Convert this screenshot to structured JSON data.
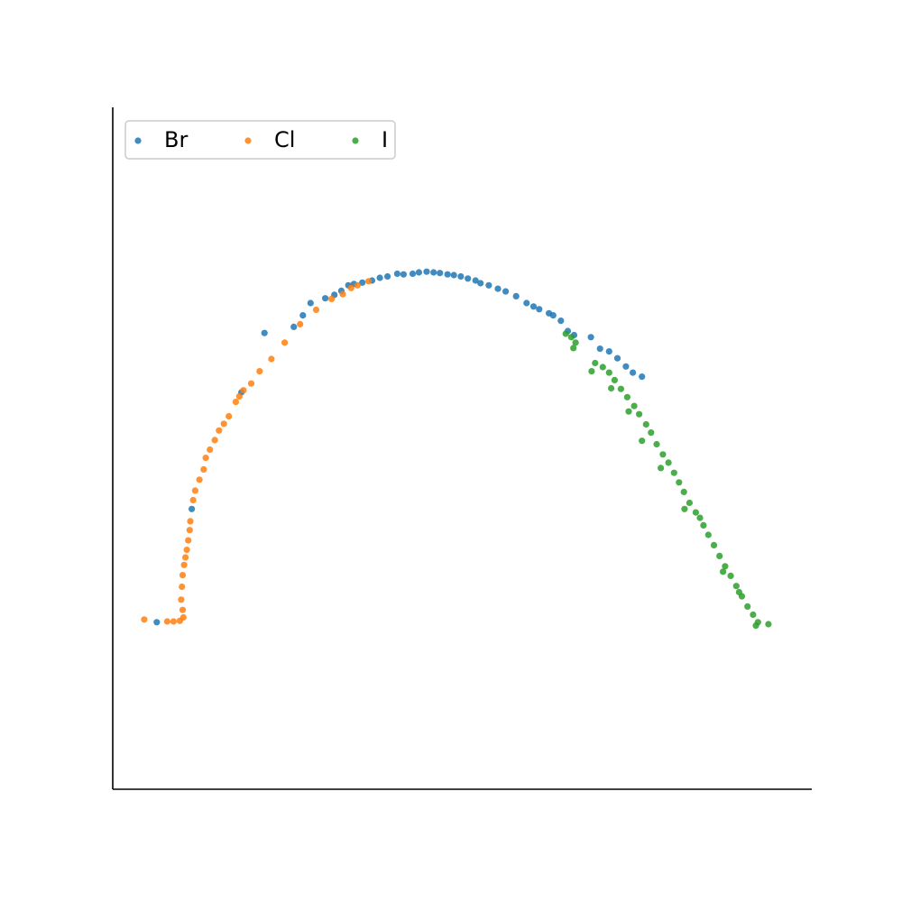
{
  "chart_data": {
    "type": "scatter",
    "title": "",
    "xlabel": "",
    "ylabel": "",
    "xlim": [
      0,
      100
    ],
    "ylim": [
      0,
      100
    ],
    "grid": false,
    "ticks_visible": false,
    "legend": {
      "placement": "top-left",
      "columns": 3
    },
    "series": [
      {
        "name": "Br",
        "color": "#1f77b4",
        "points": [
          [
            6.3,
            24.5
          ],
          [
            11.3,
            41.1
          ],
          [
            18.4,
            58.2
          ],
          [
            21.7,
            66.9
          ],
          [
            25.9,
            67.8
          ],
          [
            27.2,
            69.5
          ],
          [
            28.3,
            71.3
          ],
          [
            30.4,
            72.0
          ],
          [
            31.7,
            72.5
          ],
          [
            32.7,
            73.1
          ],
          [
            33.7,
            73.9
          ],
          [
            34.5,
            74.1
          ],
          [
            35.7,
            74.3
          ],
          [
            37.1,
            74.6
          ],
          [
            38.2,
            75.0
          ],
          [
            39.3,
            75.2
          ],
          [
            40.7,
            75.6
          ],
          [
            41.6,
            75.5
          ],
          [
            42.9,
            75.6
          ],
          [
            43.8,
            75.8
          ],
          [
            44.9,
            75.9
          ],
          [
            45.9,
            75.8
          ],
          [
            46.8,
            75.7
          ],
          [
            47.9,
            75.5
          ],
          [
            48.8,
            75.4
          ],
          [
            49.8,
            75.2
          ],
          [
            50.8,
            74.9
          ],
          [
            51.9,
            74.6
          ],
          [
            52.6,
            74.2
          ],
          [
            53.8,
            73.9
          ],
          [
            55.1,
            73.4
          ],
          [
            56.2,
            73.0
          ],
          [
            57.7,
            72.3
          ],
          [
            59.2,
            71.3
          ],
          [
            60.2,
            70.8
          ],
          [
            61.0,
            70.4
          ],
          [
            62.4,
            69.8
          ],
          [
            63.0,
            69.5
          ],
          [
            64.1,
            68.7
          ],
          [
            65.1,
            67.2
          ],
          [
            66.0,
            66.6
          ],
          [
            68.4,
            66.3
          ],
          [
            69.7,
            64.6
          ],
          [
            71.0,
            64.2
          ],
          [
            72.2,
            63.2
          ],
          [
            73.4,
            62.0
          ],
          [
            74.4,
            61.1
          ],
          [
            75.7,
            60.5
          ]
        ]
      },
      {
        "name": "Cl",
        "color": "#ff7f0e",
        "points": [
          [
            4.5,
            24.9
          ],
          [
            7.8,
            24.6
          ],
          [
            8.7,
            24.6
          ],
          [
            9.6,
            24.7
          ],
          [
            10.1,
            25.2
          ],
          [
            10.0,
            26.3
          ],
          [
            9.8,
            27.8
          ],
          [
            9.9,
            29.7
          ],
          [
            10.0,
            31.4
          ],
          [
            10.2,
            32.9
          ],
          [
            10.4,
            34.0
          ],
          [
            10.6,
            35.1
          ],
          [
            10.8,
            36.5
          ],
          [
            11.0,
            38.0
          ],
          [
            11.1,
            39.3
          ],
          [
            11.5,
            42.4
          ],
          [
            11.8,
            43.8
          ],
          [
            12.4,
            45.4
          ],
          [
            13.0,
            46.9
          ],
          [
            13.3,
            48.6
          ],
          [
            13.9,
            49.8
          ],
          [
            14.6,
            51.2
          ],
          [
            15.2,
            52.6
          ],
          [
            15.9,
            53.6
          ],
          [
            16.6,
            54.7
          ],
          [
            17.6,
            56.8
          ],
          [
            18.1,
            57.6
          ],
          [
            18.7,
            58.5
          ],
          [
            19.8,
            59.5
          ],
          [
            21.0,
            61.3
          ],
          [
            22.7,
            63.1
          ],
          [
            24.6,
            65.5
          ],
          [
            26.8,
            68.2
          ],
          [
            29.1,
            70.3
          ],
          [
            31.3,
            71.9
          ],
          [
            32.9,
            72.6
          ],
          [
            34.1,
            73.5
          ],
          [
            35.0,
            73.9
          ],
          [
            36.6,
            74.5
          ]
        ]
      },
      {
        "name": "I",
        "color": "#2ca02c",
        "points": [
          [
            64.8,
            66.8
          ],
          [
            65.6,
            66.3
          ],
          [
            66.2,
            65.5
          ],
          [
            69.0,
            62.5
          ],
          [
            70.1,
            61.9
          ],
          [
            71.0,
            61.1
          ],
          [
            71.8,
            60.0
          ],
          [
            72.7,
            58.7
          ],
          [
            73.6,
            57.5
          ],
          [
            74.6,
            56.2
          ],
          [
            75.3,
            55.0
          ],
          [
            76.3,
            53.5
          ],
          [
            77.0,
            52.3
          ],
          [
            77.8,
            50.6
          ],
          [
            78.7,
            49.1
          ],
          [
            79.5,
            47.9
          ],
          [
            80.3,
            46.4
          ],
          [
            81.0,
            45.0
          ],
          [
            81.7,
            43.6
          ],
          [
            82.5,
            42.0
          ],
          [
            83.4,
            40.6
          ],
          [
            84.5,
            38.7
          ],
          [
            85.2,
            37.3
          ],
          [
            86.0,
            35.8
          ],
          [
            86.8,
            34.2
          ],
          [
            87.6,
            32.7
          ],
          [
            88.4,
            31.3
          ],
          [
            89.2,
            29.8
          ],
          [
            90.0,
            28.3
          ],
          [
            90.8,
            26.8
          ],
          [
            91.6,
            25.6
          ],
          [
            92.3,
            24.5
          ],
          [
            93.8,
            24.2
          ],
          [
            92.0,
            24.0
          ],
          [
            89.6,
            28.9
          ],
          [
            87.3,
            31.9
          ],
          [
            84.0,
            39.8
          ],
          [
            81.8,
            41.1
          ],
          [
            78.4,
            47.1
          ],
          [
            75.7,
            51.1
          ],
          [
            73.8,
            55.4
          ],
          [
            71.3,
            58.8
          ],
          [
            68.5,
            61.3
          ],
          [
            65.9,
            64.7
          ]
        ]
      }
    ]
  }
}
